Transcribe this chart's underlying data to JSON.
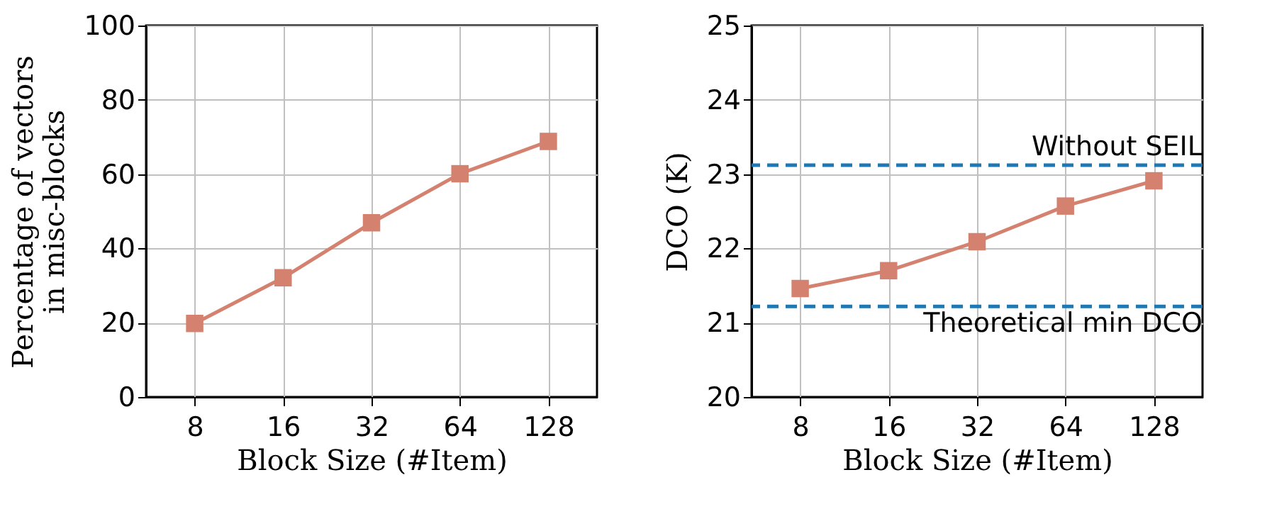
{
  "chart_data": [
    {
      "type": "line",
      "xlabel": "Block Size (#Item)",
      "ylabel": "Percentage of vectors\nin misc-blocks",
      "categories": [
        "8",
        "16",
        "32",
        "64",
        "128"
      ],
      "series": [
        {
          "color": "#d4826f",
          "values": [
            19.8,
            32.1,
            46.9,
            60.1,
            68.8
          ]
        }
      ],
      "ylim": [
        0,
        100
      ],
      "yticks": [
        0,
        20,
        40,
        60,
        80,
        100
      ],
      "grid": true,
      "marker": "square",
      "line_style": "solid"
    },
    {
      "type": "line",
      "xlabel": "Block Size (#Item)",
      "ylabel": "DCO (K)",
      "categories": [
        "8",
        "16",
        "32",
        "64",
        "128"
      ],
      "series": [
        {
          "color": "#d4826f",
          "values": [
            21.46,
            21.7,
            22.09,
            22.57,
            22.91
          ]
        }
      ],
      "ylim": [
        20,
        25
      ],
      "yticks": [
        20,
        21,
        22,
        23,
        24,
        25
      ],
      "grid": true,
      "marker": "square",
      "line_style": "solid",
      "ref_lines": [
        {
          "axis": "y",
          "value": 23.12,
          "label": "Without SEIL",
          "color": "#1f77b4",
          "line_style": "dashed"
        },
        {
          "axis": "y",
          "value": 21.22,
          "label": "Theoretical min DCO",
          "color": "#1f77b4",
          "line_style": "dashed"
        }
      ]
    }
  ]
}
